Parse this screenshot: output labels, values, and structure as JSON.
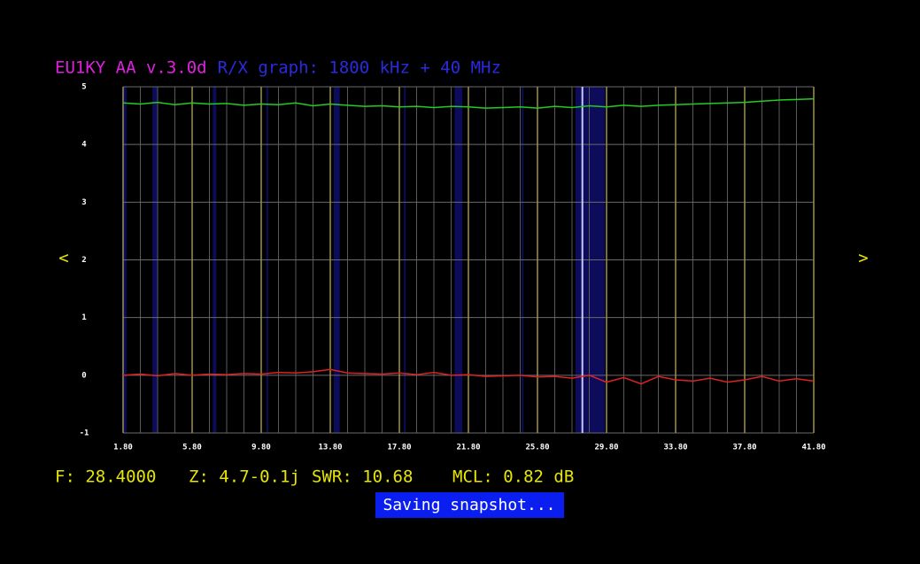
{
  "chart_data": {
    "type": "line",
    "title": "EU1KY AA v.3.0d",
    "subtitle": "R/X graph: 1800 kHz + 40 MHz",
    "x": [
      1.8,
      2.8,
      3.8,
      4.8,
      5.8,
      6.8,
      7.8,
      8.8,
      9.8,
      10.8,
      11.8,
      12.8,
      13.8,
      14.8,
      15.8,
      16.8,
      17.8,
      18.8,
      19.8,
      20.8,
      21.8,
      22.8,
      23.8,
      24.8,
      25.8,
      26.8,
      27.8,
      28.8,
      29.8,
      30.8,
      31.8,
      32.8,
      33.8,
      34.8,
      35.8,
      36.8,
      37.8,
      38.8,
      39.8,
      40.8,
      41.8
    ],
    "series": [
      {
        "color": "#22cc22",
        "values": [
          4.72,
          4.7,
          4.73,
          4.69,
          4.72,
          4.7,
          4.71,
          4.68,
          4.7,
          4.69,
          4.72,
          4.67,
          4.7,
          4.68,
          4.66,
          4.67,
          4.65,
          4.66,
          4.64,
          4.66,
          4.65,
          4.63,
          4.64,
          4.65,
          4.63,
          4.66,
          4.64,
          4.67,
          4.65,
          4.68,
          4.66,
          4.68,
          4.69,
          4.7,
          4.71,
          4.72,
          4.73,
          4.75,
          4.77,
          4.78,
          4.79
        ]
      },
      {
        "color": "#dd2222",
        "values": [
          0,
          0.02,
          -0.01,
          0.03,
          0,
          0.02,
          0.01,
          0.03,
          0.02,
          0.05,
          0.04,
          0.06,
          0.1,
          0.04,
          0.03,
          0.02,
          0.04,
          0.01,
          0.05,
          0,
          0.01,
          -0.02,
          -0.01,
          0,
          -0.03,
          -0.02,
          -0.05,
          0,
          -0.12,
          -0.04,
          -0.15,
          -0.02,
          -0.08,
          -0.1,
          -0.05,
          -0.12,
          -0.08,
          -0.02,
          -0.1,
          -0.06,
          -0.1
        ]
      }
    ],
    "xlim": [
      1.8,
      41.8
    ],
    "xticks": [
      {
        "value": 1.8,
        "label": "1.80"
      },
      {
        "value": 5.8,
        "label": "5.80"
      },
      {
        "value": 9.8,
        "label": "9.80"
      },
      {
        "value": 13.8,
        "label": "13.80"
      },
      {
        "value": 17.8,
        "label": "17.80"
      },
      {
        "value": 21.8,
        "label": "21.80"
      },
      {
        "value": 25.8,
        "label": "25.80"
      },
      {
        "value": 29.8,
        "label": "29.80"
      },
      {
        "value": 33.8,
        "label": "33.80"
      },
      {
        "value": 37.8,
        "label": "37.80"
      },
      {
        "value": 41.8,
        "label": "41.80"
      }
    ],
    "ylim": [
      -1,
      5
    ],
    "yticks": [
      5,
      4,
      3,
      2,
      1,
      0,
      -1
    ],
    "grid": true,
    "bands": [
      [
        1.8,
        2.0
      ],
      [
        3.5,
        3.8
      ],
      [
        7.0,
        7.2
      ],
      [
        10.1,
        10.15
      ],
      [
        14.0,
        14.35
      ],
      [
        18.068,
        18.168
      ],
      [
        21.0,
        21.45
      ],
      [
        24.89,
        24.99
      ],
      [
        28.0,
        29.7
      ]
    ],
    "cursor": 28.4
  },
  "ui": {
    "nav_left": "<",
    "nav_right": ">",
    "status": [
      "F: 28.4000",
      "Z: 4.7-0.1j",
      "SWR: 10.68",
      "MCL: 0.82 dB"
    ],
    "toast": "Saving snapshot..."
  }
}
